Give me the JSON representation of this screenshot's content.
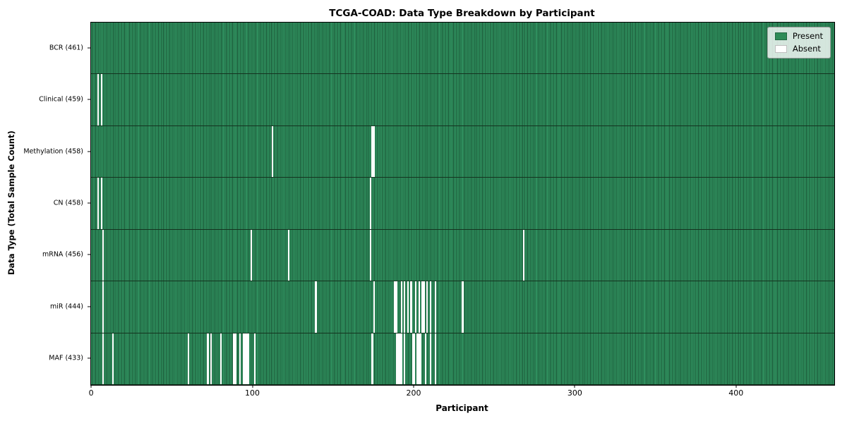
{
  "title": "TCGA-COAD: Data Type Breakdown by Participant",
  "xlabel": "Participant",
  "ylabel": "Data Type (Total Sample Count)",
  "legend": {
    "present_label": "Present",
    "absent_label": "Absent",
    "colors": {
      "present": "#2E8B57",
      "absent": "#FFFFFF"
    }
  },
  "chart_data": {
    "type": "heatmap",
    "title": "TCGA-COAD: Data Type Breakdown by Participant",
    "xlabel": "Participant",
    "ylabel": "Data Type (Total Sample Count)",
    "legend_entries": [
      "Present",
      "Absent"
    ],
    "legend_position": "upper right",
    "grid": false,
    "n_participants": 461,
    "x_range": [
      -0.5,
      460.5
    ],
    "x_ticks": [
      0,
      100,
      200,
      300,
      400
    ],
    "cell_states": [
      "present",
      "absent"
    ],
    "rows": [
      {
        "label": "BCR (461)",
        "name": "BCR",
        "present_count": 461,
        "absent_participants": []
      },
      {
        "label": "Clinical (459)",
        "name": "Clinical",
        "present_count": 459,
        "absent_participants": [
          4,
          6
        ]
      },
      {
        "label": "Methylation (458)",
        "name": "Methylation",
        "present_count": 458,
        "absent_participants": [
          112,
          174,
          175
        ]
      },
      {
        "label": "CN (458)",
        "name": "CN",
        "present_count": 458,
        "absent_participants": [
          4,
          6,
          173
        ]
      },
      {
        "label": "mRNA (456)",
        "name": "mRNA",
        "present_count": 456,
        "absent_participants": [
          7,
          99,
          122,
          173,
          268
        ]
      },
      {
        "label": "miR (444)",
        "name": "miR",
        "present_count": 444,
        "absent_participants": [
          7,
          139,
          175,
          188,
          189,
          192,
          194,
          196,
          198,
          201,
          203,
          205,
          206,
          208,
          210,
          213,
          230
        ]
      },
      {
        "label": "MAF (433)",
        "name": "MAF",
        "present_count": 433,
        "absent_participants": [
          7,
          13,
          60,
          72,
          74,
          80,
          88,
          89,
          92,
          94,
          95,
          96,
          97,
          101,
          174,
          189,
          190,
          191,
          192,
          194,
          199,
          200,
          202,
          203,
          204,
          207,
          210,
          213
        ]
      }
    ]
  }
}
